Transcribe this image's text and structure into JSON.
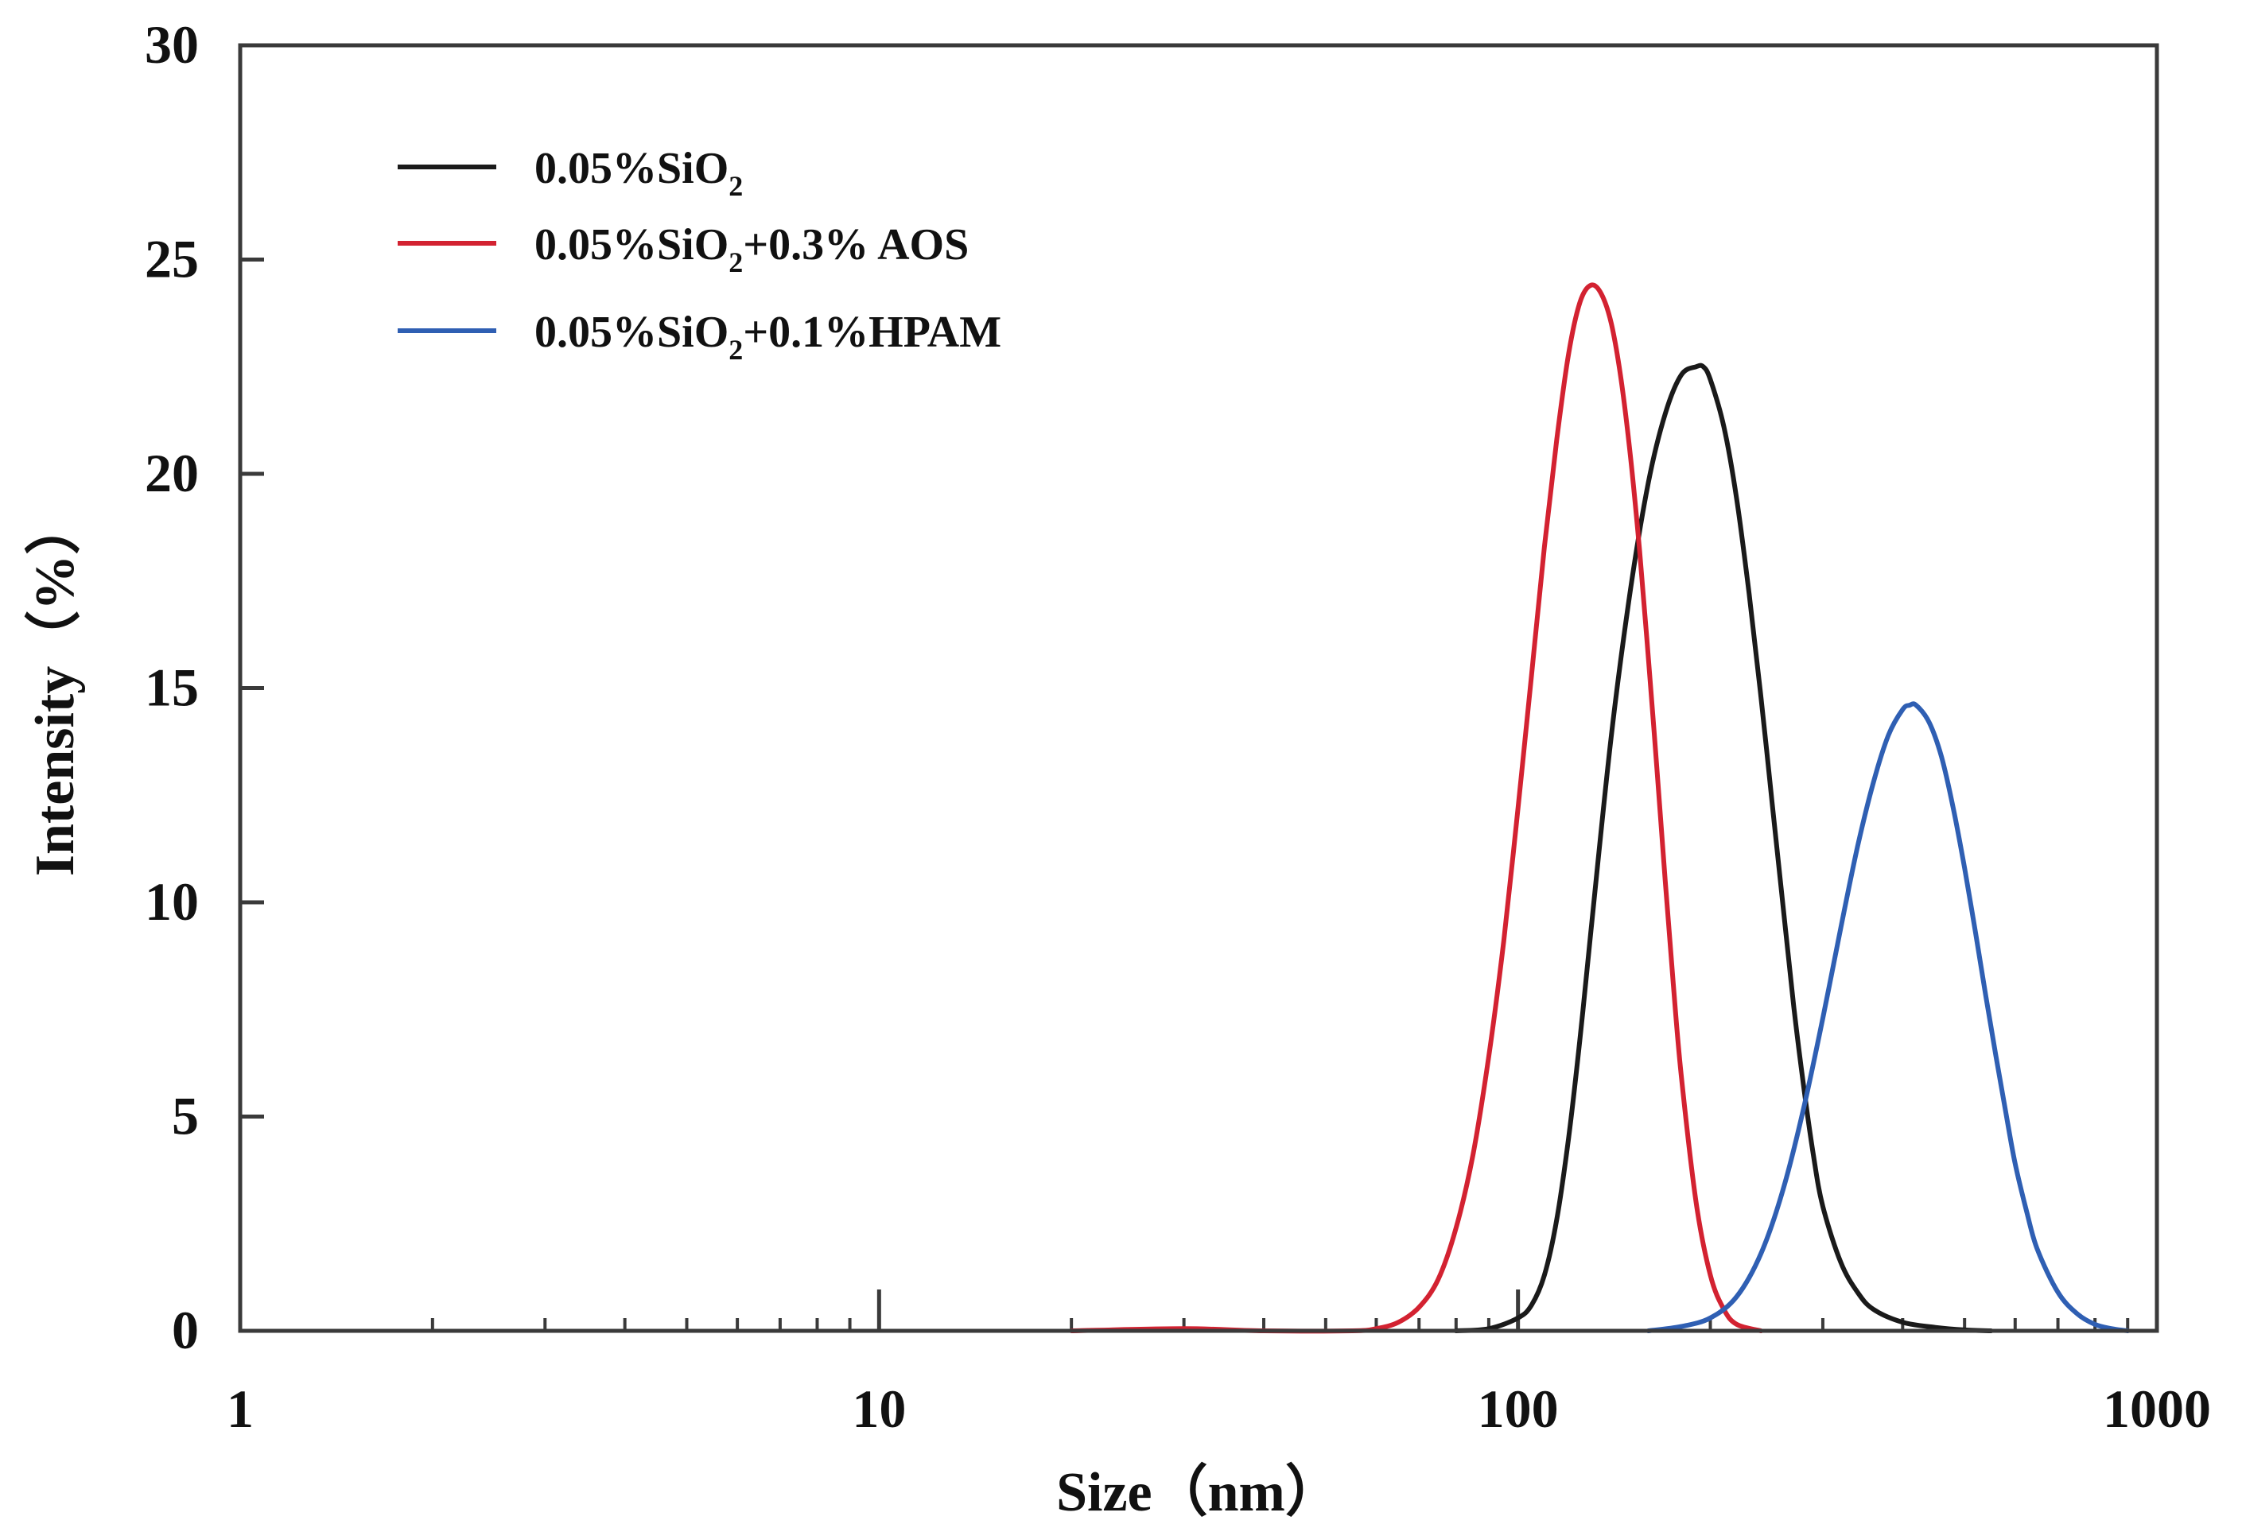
{
  "chart_data": {
    "type": "line",
    "xscale": "log",
    "xlim": [
      1,
      1000
    ],
    "ylim": [
      0,
      30
    ],
    "xlabel": "Size（nm）",
    "ylabel": "Intensity（%）",
    "xticks": [
      {
        "value": 1,
        "label": "1"
      },
      {
        "value": 10,
        "label": "10"
      },
      {
        "value": 100,
        "label": "100"
      },
      {
        "value": 1000,
        "label": "1000"
      }
    ],
    "yticks": [
      {
        "value": 0,
        "label": "0"
      },
      {
        "value": 5,
        "label": "5"
      },
      {
        "value": 10,
        "label": "10"
      },
      {
        "value": 15,
        "label": "15"
      },
      {
        "value": 20,
        "label": "20"
      },
      {
        "value": 25,
        "label": "25"
      },
      {
        "value": 30,
        "label": "30"
      }
    ],
    "legend_position": "top-left",
    "series": [
      {
        "name": "0.05%SiO2",
        "label_main": "0.05%SiO",
        "label_sub": "2",
        "label_tail": "",
        "color": "#1a1a1a",
        "x": [
          80,
          90,
          100,
          105,
          110,
          115,
          120,
          125,
          130,
          140,
          150,
          160,
          170,
          180,
          190,
          195,
          200,
          210,
          220,
          230,
          240,
          250,
          260,
          270,
          280,
          290,
          300,
          320,
          340,
          360,
          400,
          450,
          500,
          550
        ],
        "y": [
          0.0,
          0.05,
          0.3,
          0.6,
          1.3,
          2.6,
          4.5,
          6.8,
          9.3,
          13.9,
          17.3,
          19.8,
          21.4,
          22.3,
          22.5,
          22.5,
          22.2,
          21.1,
          19.4,
          17.2,
          14.8,
          12.3,
          9.9,
          7.6,
          5.7,
          4.1,
          2.9,
          1.6,
          0.9,
          0.5,
          0.2,
          0.08,
          0.02,
          0.0
        ]
      },
      {
        "name": "0.05%SiO2+0.3% AOS",
        "label_main": "0.05%SiO",
        "label_sub": "2",
        "label_tail": "+0.3% AOS",
        "color": "#d32231",
        "x": [
          20,
          30,
          40,
          55,
          60,
          65,
          70,
          75,
          80,
          85,
          90,
          95,
          100,
          105,
          110,
          115,
          120,
          125,
          130,
          135,
          140,
          145,
          150,
          155,
          160,
          165,
          170,
          175,
          180,
          190,
          200,
          210,
          220,
          240
        ],
        "y": [
          0.0,
          0.05,
          0.0,
          0.0,
          0.05,
          0.2,
          0.55,
          1.2,
          2.4,
          4.1,
          6.4,
          9.1,
          12.2,
          15.3,
          18.3,
          20.8,
          22.8,
          24.0,
          24.4,
          24.2,
          23.5,
          22.2,
          20.4,
          18.2,
          15.7,
          13.1,
          10.5,
          8.1,
          6.0,
          3.0,
          1.3,
          0.5,
          0.15,
          0.0
        ]
      },
      {
        "name": "0.05%SiO2+0.1%HPAM",
        "label_main": "0.05%SiO",
        "label_sub": "2",
        "label_tail": "+0.1%HPAM",
        "color": "#2f5fb3",
        "x": [
          160,
          180,
          200,
          220,
          240,
          260,
          280,
          300,
          320,
          340,
          360,
          380,
          400,
          410,
          420,
          440,
          460,
          480,
          500,
          520,
          540,
          560,
          580,
          600,
          625,
          650,
          700,
          750,
          800,
          850,
          900
        ],
        "y": [
          0.0,
          0.1,
          0.3,
          0.8,
          1.8,
          3.3,
          5.2,
          7.3,
          9.4,
          11.3,
          12.8,
          13.9,
          14.5,
          14.6,
          14.6,
          14.2,
          13.4,
          12.2,
          10.8,
          9.3,
          7.8,
          6.4,
          5.1,
          3.9,
          2.8,
          1.9,
          0.9,
          0.4,
          0.15,
          0.05,
          0.0
        ]
      }
    ]
  }
}
